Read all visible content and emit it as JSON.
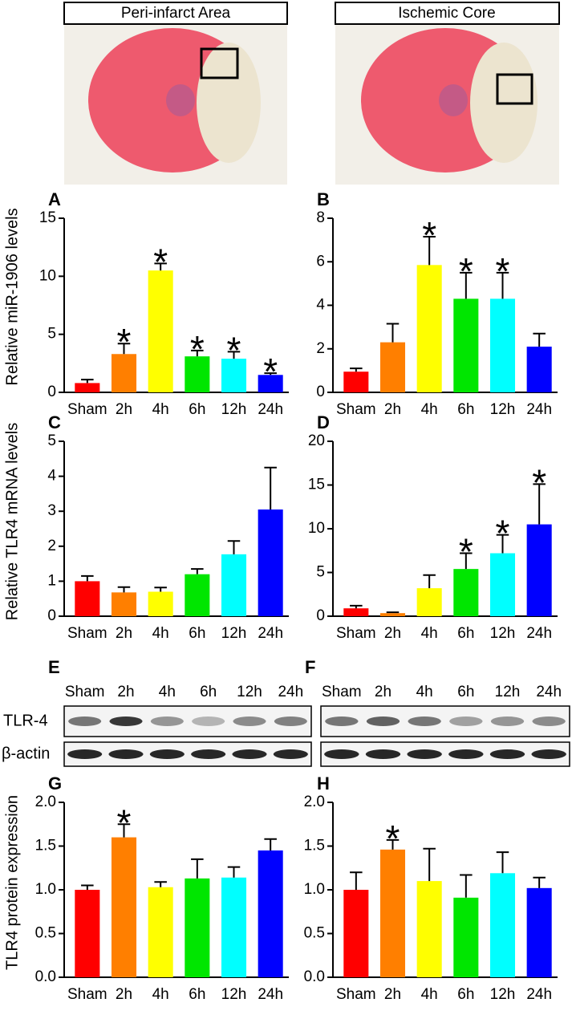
{
  "images": [
    {
      "label": "Peri-infarct Area"
    },
    {
      "label": "Ischemic Core"
    }
  ],
  "chart_data": [
    {
      "type": "bar",
      "panel": "A",
      "ylabel": "Relative miR-1906 levels",
      "categories": [
        "Sham",
        "2h",
        "4h",
        "6h",
        "12h",
        "24h"
      ],
      "values": [
        0.8,
        3.3,
        10.5,
        3.1,
        2.9,
        1.5
      ],
      "errors": [
        0.3,
        0.9,
        0.6,
        0.5,
        0.6,
        0.15
      ],
      "annotations": [
        null,
        "*",
        "*",
        "*",
        "*",
        "*"
      ],
      "colors": [
        "#ff0000",
        "#ff7f00",
        "#ffff00",
        "#00e600",
        "#00ffff",
        "#0000ff"
      ],
      "ylim": [
        0,
        15
      ],
      "yticks": [
        0,
        5,
        10,
        15
      ]
    },
    {
      "type": "bar",
      "panel": "B",
      "categories": [
        "Sham",
        "2h",
        "4h",
        "6h",
        "12h",
        "24h"
      ],
      "values": [
        0.95,
        2.3,
        5.85,
        4.3,
        4.3,
        2.1
      ],
      "errors": [
        0.15,
        0.85,
        1.3,
        1.2,
        1.2,
        0.6
      ],
      "annotations": [
        null,
        null,
        "*",
        "*",
        "*",
        null
      ],
      "colors": [
        "#ff0000",
        "#ff7f00",
        "#ffff00",
        "#00e600",
        "#00ffff",
        "#0000ff"
      ],
      "ylim": [
        0,
        8
      ],
      "yticks": [
        0,
        2,
        4,
        6,
        8
      ]
    },
    {
      "type": "bar",
      "panel": "C",
      "ylabel": "Relative TLR4 mRNA levels",
      "categories": [
        "Sham",
        "2h",
        "4h",
        "6h",
        "12h",
        "24h"
      ],
      "values": [
        1.0,
        0.68,
        0.7,
        1.2,
        1.77,
        3.05
      ],
      "errors": [
        0.15,
        0.15,
        0.12,
        0.15,
        0.38,
        1.2
      ],
      "annotations": [
        null,
        null,
        null,
        null,
        null,
        null
      ],
      "colors": [
        "#ff0000",
        "#ff7f00",
        "#ffff00",
        "#00e600",
        "#00ffff",
        "#0000ff"
      ],
      "ylim": [
        0,
        5
      ],
      "yticks": [
        0,
        1,
        2,
        3,
        4,
        5
      ]
    },
    {
      "type": "bar",
      "panel": "D",
      "categories": [
        "Sham",
        "2h",
        "4h",
        "6h",
        "12h",
        "24h"
      ],
      "values": [
        0.9,
        0.35,
        3.2,
        5.4,
        7.2,
        10.5
      ],
      "errors": [
        0.3,
        0.1,
        1.5,
        1.8,
        2.1,
        4.6
      ],
      "annotations": [
        null,
        null,
        null,
        "*",
        "*",
        "*"
      ],
      "colors": [
        "#ff0000",
        "#ff7f00",
        "#ffff00",
        "#00e600",
        "#00ffff",
        "#0000ff"
      ],
      "ylim": [
        0,
        20
      ],
      "yticks": [
        0,
        5,
        10,
        15,
        20
      ]
    },
    {
      "type": "bar",
      "panel": "G",
      "ylabel": "TLR4 protein expression",
      "categories": [
        "Sham",
        "2h",
        "4h",
        "6h",
        "12h",
        "24h"
      ],
      "values": [
        1.0,
        1.6,
        1.03,
        1.13,
        1.14,
        1.45
      ],
      "errors": [
        0.05,
        0.15,
        0.06,
        0.22,
        0.12,
        0.13
      ],
      "annotations": [
        null,
        "*",
        null,
        null,
        null,
        null
      ],
      "colors": [
        "#ff0000",
        "#ff7f00",
        "#ffff00",
        "#00e600",
        "#00ffff",
        "#0000ff"
      ],
      "ylim": [
        0,
        2
      ],
      "yticks": [
        {
          "value": 0,
          "label": "0.0"
        },
        0.5,
        {
          "value": 1,
          "label": "1.0"
        },
        1.5,
        {
          "value": 2,
          "label": "2.0"
        }
      ]
    },
    {
      "type": "bar",
      "panel": "H",
      "categories": [
        "Sham",
        "2h",
        "4h",
        "6h",
        "12h",
        "24h"
      ],
      "values": [
        1.0,
        1.46,
        1.1,
        0.91,
        1.19,
        1.02
      ],
      "errors": [
        0.2,
        0.11,
        0.37,
        0.26,
        0.24,
        0.12
      ],
      "annotations": [
        null,
        "*",
        null,
        null,
        null,
        null
      ],
      "colors": [
        "#ff0000",
        "#ff7f00",
        "#ffff00",
        "#00e600",
        "#00ffff",
        "#0000ff"
      ],
      "ylim": [
        0,
        2
      ],
      "yticks": [
        {
          "value": 0,
          "label": "0.0"
        },
        0.5,
        {
          "value": 1,
          "label": "1.0"
        },
        1.5,
        {
          "value": 2,
          "label": "2.0"
        }
      ]
    }
  ],
  "blots": [
    {
      "panel": "E",
      "lanes": [
        "Sham",
        "2h",
        "4h",
        "6h",
        "12h",
        "24h"
      ],
      "rows": [
        "TLR-4",
        "β-actin"
      ]
    },
    {
      "panel": "F",
      "lanes": [
        "Sham",
        "2h",
        "4h",
        "6h",
        "12h",
        "24h"
      ]
    }
  ]
}
